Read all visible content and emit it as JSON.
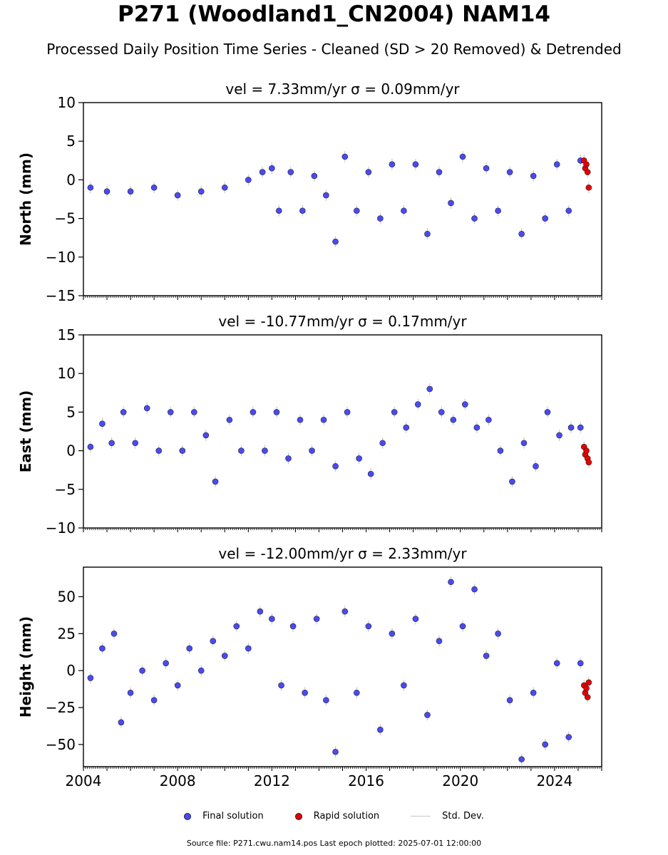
{
  "title": "P271 (Woodland1_CN2004) NAM14",
  "subtitle": "Processed Daily Position Time Series - Cleaned (SD > 20 Removed) & Detrended",
  "legend": {
    "final": "Final solution",
    "rapid": "Rapid solution",
    "std": "Std. Dev."
  },
  "footer": "Source file: P271.cwu.nam14.pos  Last epoch plotted: 2025-07-01 12:00:00",
  "colors": {
    "final": "#4a4af5",
    "rapid": "#e80000",
    "std": "#999999"
  },
  "chart_data": [
    {
      "type": "scatter",
      "title": "vel = 7.33mm/yr   σ = 0.09mm/yr",
      "ylabel": "North (mm)",
      "xlabel": "",
      "xlim": [
        2004.0,
        2026.0
      ],
      "ylim": [
        -15,
        10
      ],
      "yticks": [
        -15,
        -10,
        -5,
        0,
        5,
        10
      ],
      "grid": false,
      "legend_position": "bottom-center",
      "series": [
        {
          "name": "Final solution",
          "x": [
            2004.3,
            2005.0,
            2006.0,
            2007.0,
            2008.0,
            2009.0,
            2010.0,
            2011.0,
            2011.6,
            2012.0,
            2012.3,
            2012.8,
            2013.3,
            2013.8,
            2014.3,
            2014.7,
            2015.1,
            2015.6,
            2016.1,
            2016.6,
            2017.1,
            2017.6,
            2018.1,
            2018.6,
            2019.1,
            2019.6,
            2020.1,
            2020.6,
            2021.1,
            2021.6,
            2022.1,
            2022.6,
            2023.1,
            2023.6,
            2024.1,
            2024.6,
            2025.1
          ],
          "y": [
            -1.0,
            -1.5,
            -1.5,
            -1.0,
            -2.0,
            -1.5,
            -1.0,
            0.0,
            1.0,
            1.5,
            -4.0,
            1.0,
            -4.0,
            0.5,
            -2.0,
            -8.0,
            3.0,
            -4.0,
            1.0,
            -5.0,
            2.0,
            -4.0,
            2.0,
            -7.0,
            1.0,
            -3.0,
            3.0,
            -5.0,
            1.5,
            -4.0,
            1.0,
            -7.0,
            0.5,
            -5.0,
            2.0,
            -4.0,
            2.5
          ]
        },
        {
          "name": "Rapid solution",
          "x": [
            2025.25,
            2025.3,
            2025.35,
            2025.4,
            2025.45
          ],
          "y": [
            2.5,
            1.5,
            2.0,
            1.0,
            -1.0
          ]
        }
      ]
    },
    {
      "type": "scatter",
      "title": "vel = -10.77mm/yr   σ = 0.17mm/yr",
      "ylabel": "East (mm)",
      "xlabel": "",
      "xlim": [
        2004.0,
        2026.0
      ],
      "ylim": [
        -10,
        15
      ],
      "yticks": [
        -10,
        -5,
        0,
        5,
        10,
        15
      ],
      "grid": false,
      "legend_position": "bottom-center",
      "series": [
        {
          "name": "Final solution",
          "x": [
            2004.3,
            2004.8,
            2005.2,
            2005.7,
            2006.2,
            2006.7,
            2007.2,
            2007.7,
            2008.2,
            2008.7,
            2009.2,
            2009.6,
            2010.2,
            2010.7,
            2011.2,
            2011.7,
            2012.2,
            2012.7,
            2013.2,
            2013.7,
            2014.2,
            2014.7,
            2015.2,
            2015.7,
            2016.2,
            2016.7,
            2017.2,
            2017.7,
            2018.2,
            2018.7,
            2019.2,
            2019.7,
            2020.2,
            2020.7,
            2021.2,
            2021.7,
            2022.2,
            2022.7,
            2023.2,
            2023.7,
            2024.2,
            2024.7,
            2025.1
          ],
          "y": [
            0.5,
            3.5,
            1.0,
            5.0,
            1.0,
            5.5,
            0.0,
            5.0,
            0.0,
            5.0,
            2.0,
            -4.0,
            4.0,
            0.0,
            5.0,
            0.0,
            5.0,
            -1.0,
            4.0,
            0.0,
            4.0,
            -2.0,
            5.0,
            -1.0,
            -3.0,
            1.0,
            5.0,
            3.0,
            6.0,
            8.0,
            5.0,
            4.0,
            6.0,
            3.0,
            4.0,
            0.0,
            -4.0,
            1.0,
            -2.0,
            5.0,
            2.0,
            3.0,
            3.0
          ]
        },
        {
          "name": "Rapid solution",
          "x": [
            2025.25,
            2025.3,
            2025.35,
            2025.4,
            2025.45
          ],
          "y": [
            0.5,
            -0.5,
            0.0,
            -1.0,
            -1.5
          ]
        }
      ]
    },
    {
      "type": "scatter",
      "title": "vel = -12.00mm/yr   σ = 2.33mm/yr",
      "ylabel": "Height (mm)",
      "xlabel": "",
      "xlim": [
        2004.0,
        2026.0
      ],
      "ylim": [
        -65,
        70
      ],
      "yticks": [
        -50,
        -25,
        0,
        25,
        50
      ],
      "xticks": [
        2004,
        2008,
        2012,
        2016,
        2020,
        2024
      ],
      "grid": false,
      "legend_position": "bottom-center",
      "series": [
        {
          "name": "Final solution",
          "x": [
            2004.3,
            2004.8,
            2005.3,
            2005.6,
            2006.0,
            2006.5,
            2007.0,
            2007.5,
            2008.0,
            2008.5,
            2009.0,
            2009.5,
            2010.0,
            2010.5,
            2011.0,
            2011.5,
            2012.0,
            2012.4,
            2012.9,
            2013.4,
            2013.9,
            2014.3,
            2014.7,
            2015.1,
            2015.6,
            2016.1,
            2016.6,
            2017.1,
            2017.6,
            2018.1,
            2018.6,
            2019.1,
            2019.6,
            2020.1,
            2020.6,
            2021.1,
            2021.6,
            2022.1,
            2022.6,
            2023.1,
            2023.6,
            2024.1,
            2024.6,
            2025.1
          ],
          "y": [
            -5.0,
            15.0,
            25.0,
            -35.0,
            -15.0,
            0.0,
            -20.0,
            5.0,
            -10.0,
            15.0,
            0.0,
            20.0,
            10.0,
            30.0,
            15.0,
            40.0,
            35.0,
            -10.0,
            30.0,
            -15.0,
            35.0,
            -20.0,
            -55.0,
            40.0,
            -15.0,
            30.0,
            -40.0,
            25.0,
            -10.0,
            35.0,
            -30.0,
            20.0,
            60.0,
            30.0,
            55.0,
            10.0,
            25.0,
            -20.0,
            -60.0,
            -15.0,
            -50.0,
            5.0,
            -45.0,
            5.0
          ]
        },
        {
          "name": "Rapid solution",
          "x": [
            2025.25,
            2025.3,
            2025.35,
            2025.4,
            2025.45
          ],
          "y": [
            -10.0,
            -15.0,
            -12.0,
            -18.0,
            -8.0
          ]
        }
      ]
    }
  ]
}
